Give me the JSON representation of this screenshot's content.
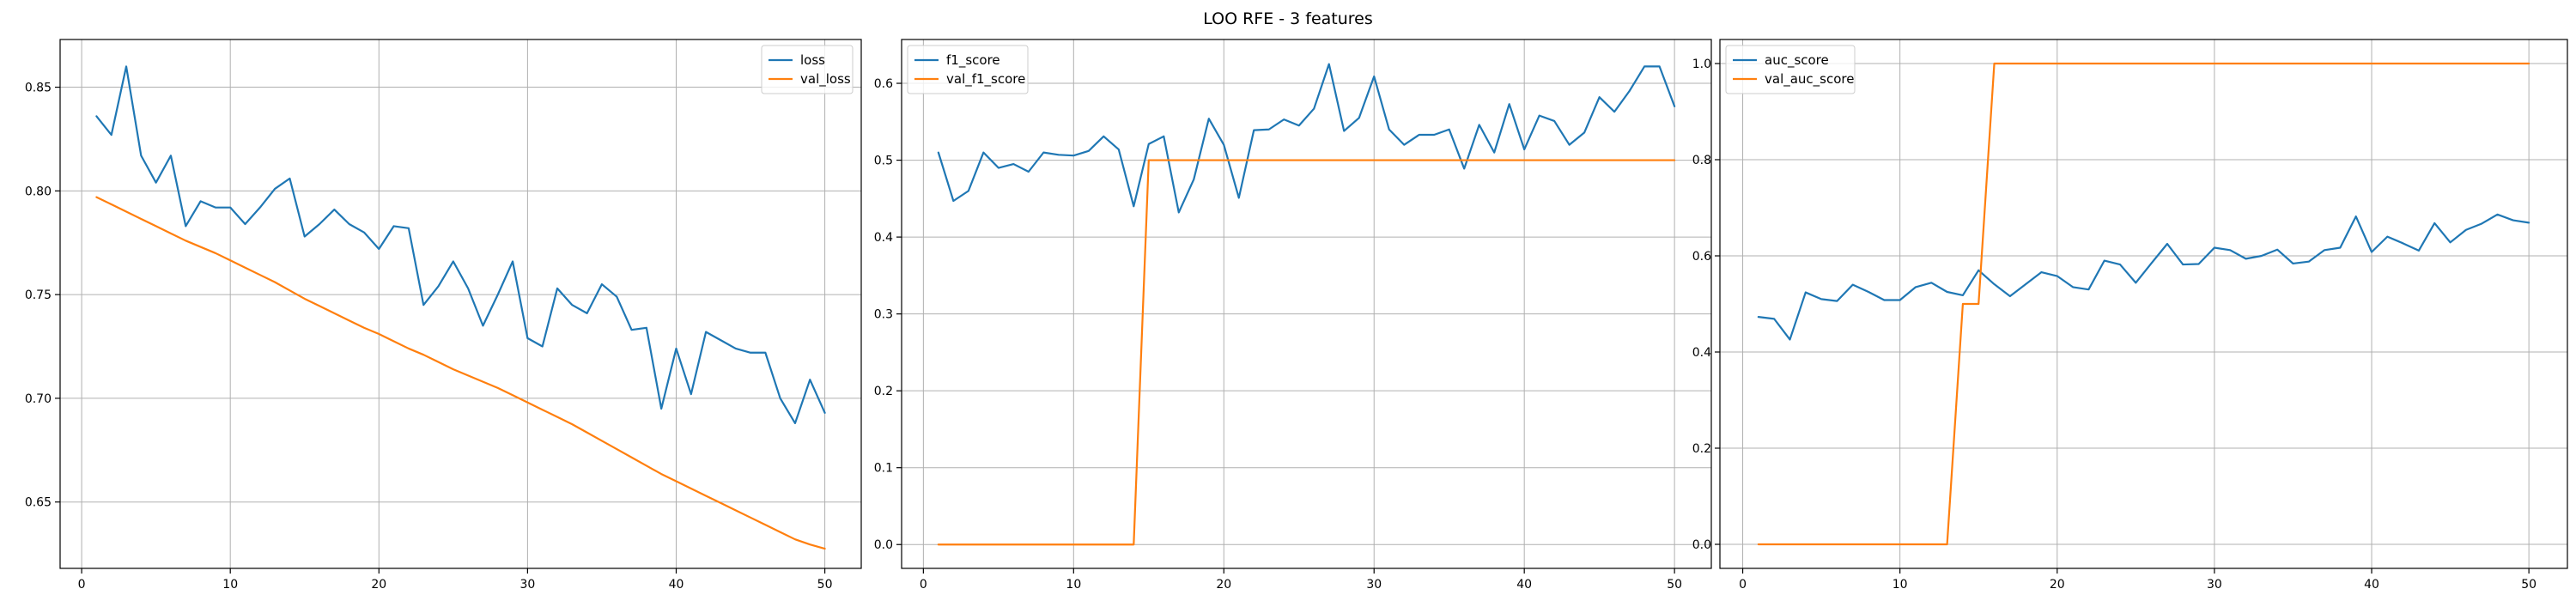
{
  "figure": {
    "suptitle": "LOO RFE - 3 features"
  },
  "colors": {
    "series_1": "#1f77b4",
    "series_2": "#ff7f0e",
    "grid": "#b0b0b0",
    "background": "#ffffff"
  },
  "chart_data": [
    {
      "type": "line",
      "title": "",
      "xlabel": "",
      "ylabel": "",
      "xlim": [
        -1.45,
        52.45
      ],
      "ylim": [
        0.618,
        0.873
      ],
      "xticks": [
        0,
        10,
        20,
        30,
        40,
        50
      ],
      "yticks": [
        0.65,
        0.7,
        0.75,
        0.8,
        0.85
      ],
      "ytick_labels": [
        "0.65",
        "0.70",
        "0.75",
        "0.80",
        "0.85"
      ],
      "grid": true,
      "legend_position": "top-right",
      "x": [
        1,
        2,
        3,
        4,
        5,
        6,
        7,
        8,
        9,
        10,
        11,
        12,
        13,
        14,
        15,
        16,
        17,
        18,
        19,
        20,
        21,
        22,
        23,
        24,
        25,
        26,
        27,
        28,
        29,
        30,
        31,
        32,
        33,
        34,
        35,
        36,
        37,
        38,
        39,
        40,
        41,
        42,
        43,
        44,
        45,
        46,
        47,
        48,
        49,
        50
      ],
      "series": [
        {
          "name": "loss",
          "color": "#1f77b4",
          "values": [
            0.836,
            0.827,
            0.86,
            0.817,
            0.804,
            0.817,
            0.783,
            0.795,
            0.792,
            0.792,
            0.784,
            0.792,
            0.801,
            0.806,
            0.778,
            0.784,
            0.791,
            0.784,
            0.78,
            0.772,
            0.783,
            0.782,
            0.745,
            0.754,
            0.766,
            0.753,
            0.735,
            0.75,
            0.766,
            0.729,
            0.725,
            0.753,
            0.745,
            0.741,
            0.755,
            0.749,
            0.733,
            0.734,
            0.695,
            0.724,
            0.702,
            0.732,
            0.728,
            0.724,
            0.722,
            0.722,
            0.7,
            0.688,
            0.709,
            0.693
          ]
        },
        {
          "name": "val_loss",
          "color": "#ff7f0e",
          "values": [
            0.797,
            0.7935,
            0.79,
            0.7865,
            0.783,
            0.7795,
            0.776,
            0.773,
            0.77,
            0.7665,
            0.763,
            0.7595,
            0.756,
            0.752,
            0.748,
            0.7445,
            0.741,
            0.7375,
            0.734,
            0.731,
            0.7275,
            0.724,
            0.721,
            0.7175,
            0.714,
            0.711,
            0.708,
            0.705,
            0.7015,
            0.698,
            0.6945,
            0.691,
            0.6875,
            0.6835,
            0.6795,
            0.6755,
            0.6715,
            0.6675,
            0.6635,
            0.66,
            0.6565,
            0.653,
            0.6495,
            0.646,
            0.6425,
            0.639,
            0.6355,
            0.632,
            0.6295,
            0.6275
          ]
        }
      ]
    },
    {
      "type": "line",
      "title": "",
      "xlabel": "",
      "ylabel": "",
      "xlim": [
        -1.45,
        52.45
      ],
      "ylim": [
        -0.031,
        0.657
      ],
      "xticks": [
        0,
        10,
        20,
        30,
        40,
        50
      ],
      "yticks": [
        0.0,
        0.1,
        0.2,
        0.3,
        0.4,
        0.5,
        0.6
      ],
      "ytick_labels": [
        "0.0",
        "0.1",
        "0.2",
        "0.3",
        "0.4",
        "0.5",
        "0.6"
      ],
      "grid": true,
      "legend_position": "top-left",
      "x": [
        1,
        2,
        3,
        4,
        5,
        6,
        7,
        8,
        9,
        10,
        11,
        12,
        13,
        14,
        15,
        16,
        17,
        18,
        19,
        20,
        21,
        22,
        23,
        24,
        25,
        26,
        27,
        28,
        29,
        30,
        31,
        32,
        33,
        34,
        35,
        36,
        37,
        38,
        39,
        40,
        41,
        42,
        43,
        44,
        45,
        46,
        47,
        48,
        49,
        50
      ],
      "series": [
        {
          "name": "f1_score",
          "color": "#1f77b4",
          "values": [
            0.51,
            0.447,
            0.46,
            0.51,
            0.49,
            0.495,
            0.485,
            0.51,
            0.507,
            0.506,
            0.512,
            0.531,
            0.514,
            0.44,
            0.521,
            0.531,
            0.432,
            0.475,
            0.554,
            0.52,
            0.451,
            0.539,
            0.54,
            0.553,
            0.545,
            0.567,
            0.625,
            0.538,
            0.555,
            0.609,
            0.54,
            0.52,
            0.533,
            0.533,
            0.54,
            0.489,
            0.546,
            0.51,
            0.573,
            0.514,
            0.558,
            0.551,
            0.52,
            0.536,
            0.582,
            0.563,
            0.59,
            0.622,
            0.622,
            0.57
          ]
        },
        {
          "name": "val_f1_score",
          "color": "#ff7f0e",
          "values": [
            0,
            0,
            0,
            0,
            0,
            0,
            0,
            0,
            0,
            0,
            0,
            0,
            0,
            0,
            0.5,
            0.5,
            0.5,
            0.5,
            0.5,
            0.5,
            0.5,
            0.5,
            0.5,
            0.5,
            0.5,
            0.5,
            0.5,
            0.5,
            0.5,
            0.5,
            0.5,
            0.5,
            0.5,
            0.5,
            0.5,
            0.5,
            0.5,
            0.5,
            0.5,
            0.5,
            0.5,
            0.5,
            0.5,
            0.5,
            0.5,
            0.5,
            0.5,
            0.5,
            0.5,
            0.5
          ]
        }
      ]
    },
    {
      "type": "line",
      "title": "",
      "xlabel": "",
      "ylabel": "",
      "xlim": [
        -1.45,
        52.45
      ],
      "ylim": [
        -0.05,
        1.05
      ],
      "xticks": [
        0,
        10,
        20,
        30,
        40,
        50
      ],
      "yticks": [
        0.0,
        0.2,
        0.4,
        0.6,
        0.8,
        1.0
      ],
      "ytick_labels": [
        "0.0",
        "0.2",
        "0.4",
        "0.6",
        "0.8",
        "1.0"
      ],
      "grid": true,
      "legend_position": "top-left",
      "x": [
        1,
        2,
        3,
        4,
        5,
        6,
        7,
        8,
        9,
        10,
        11,
        12,
        13,
        14,
        15,
        16,
        17,
        18,
        19,
        20,
        21,
        22,
        23,
        24,
        25,
        26,
        27,
        28,
        29,
        30,
        31,
        32,
        33,
        34,
        35,
        36,
        37,
        38,
        39,
        40,
        41,
        42,
        43,
        44,
        45,
        46,
        47,
        48,
        49,
        50
      ],
      "series": [
        {
          "name": "auc_score",
          "color": "#1f77b4",
          "values": [
            0.473,
            0.469,
            0.426,
            0.524,
            0.51,
            0.506,
            0.54,
            0.525,
            0.508,
            0.508,
            0.535,
            0.544,
            0.525,
            0.518,
            0.57,
            0.541,
            0.516,
            0.541,
            0.566,
            0.558,
            0.535,
            0.53,
            0.59,
            0.582,
            0.544,
            0.585,
            0.625,
            0.582,
            0.583,
            0.617,
            0.612,
            0.594,
            0.6,
            0.613,
            0.584,
            0.588,
            0.612,
            0.617,
            0.682,
            0.608,
            0.64,
            0.626,
            0.611,
            0.668,
            0.628,
            0.654,
            0.667,
            0.686,
            0.674,
            0.669
          ]
        },
        {
          "name": "val_auc_score",
          "color": "#ff7f0e",
          "values": [
            0,
            0,
            0,
            0,
            0,
            0,
            0,
            0,
            0,
            0,
            0,
            0,
            0,
            0.5,
            0.5,
            1,
            1,
            1,
            1,
            1,
            1,
            1,
            1,
            1,
            1,
            1,
            1,
            1,
            1,
            1,
            1,
            1,
            1,
            1,
            1,
            1,
            1,
            1,
            1,
            1,
            1,
            1,
            1,
            1,
            1,
            1,
            1,
            1,
            1,
            1
          ]
        }
      ]
    }
  ]
}
